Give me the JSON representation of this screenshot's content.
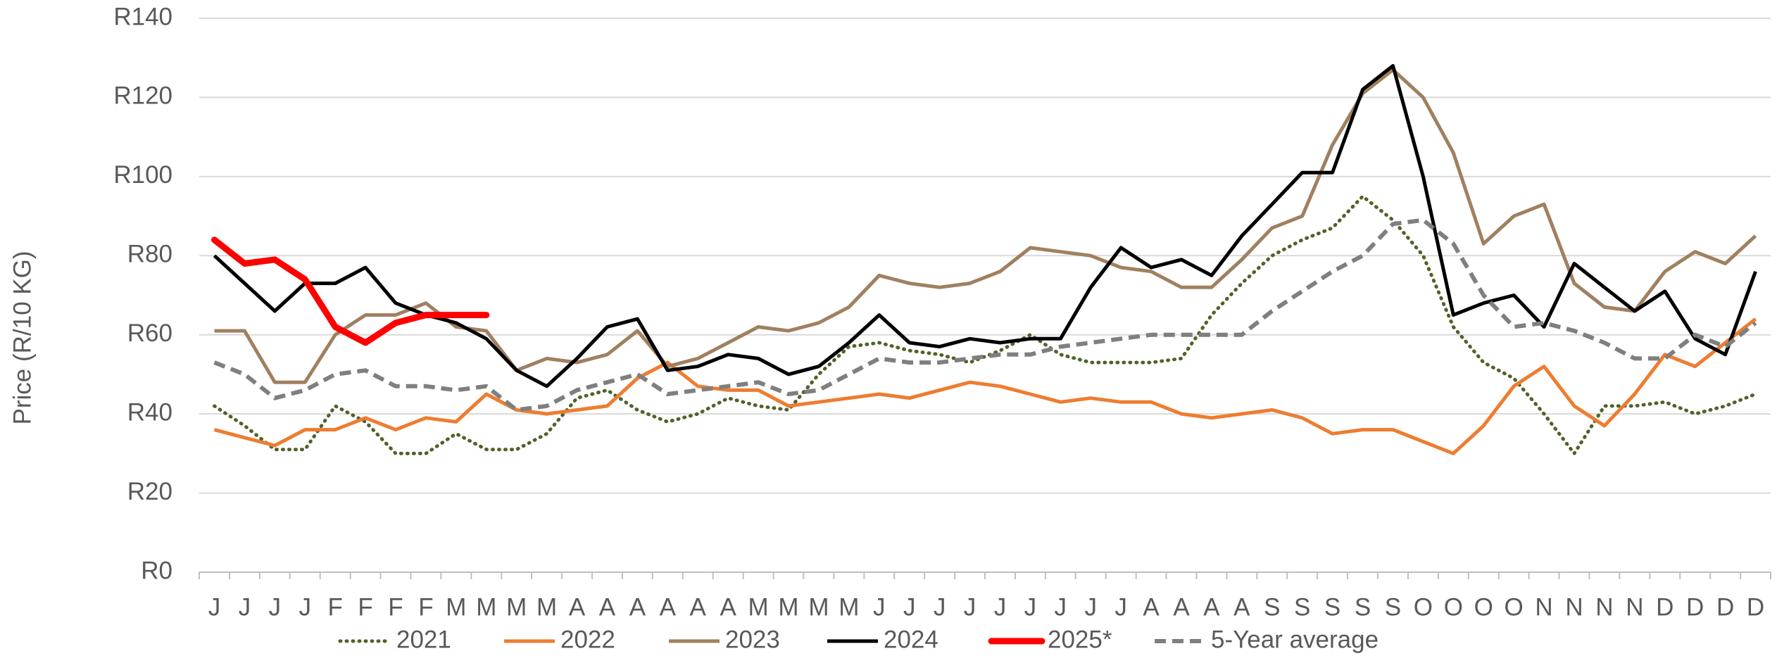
{
  "chart_data": {
    "type": "line",
    "y_label": "Price (R/10 KG)",
    "categories": [
      "J",
      "J",
      "J",
      "J",
      "F",
      "F",
      "F",
      "F",
      "M",
      "M",
      "M",
      "M",
      "A",
      "A",
      "A",
      "A",
      "A",
      "A",
      "M",
      "M",
      "M",
      "M",
      "J",
      "J",
      "J",
      "J",
      "J",
      "J",
      "J",
      "J",
      "J",
      "A",
      "A",
      "A",
      "A",
      "S",
      "S",
      "S",
      "S",
      "S",
      "O",
      "O",
      "O",
      "O",
      "N",
      "N",
      "N",
      "N",
      "D",
      "D",
      "D",
      "D"
    ],
    "ylim": [
      0,
      140
    ],
    "yticks": [
      {
        "value": 0,
        "label": "R0"
      },
      {
        "value": 20,
        "label": "R20"
      },
      {
        "value": 40,
        "label": "R40"
      },
      {
        "value": 60,
        "label": "R60"
      },
      {
        "value": 80,
        "label": "R80"
      },
      {
        "value": 100,
        "label": "R100"
      },
      {
        "value": 120,
        "label": "R120"
      },
      {
        "value": 140,
        "label": "R140"
      }
    ],
    "grid": true,
    "legend": "bottom",
    "series": [
      {
        "name": "2021",
        "color": "#4f6228",
        "style": "dotted",
        "values": [
          42,
          37,
          31,
          31,
          42,
          38,
          30,
          30,
          35,
          31,
          31,
          35,
          44,
          46,
          41,
          38,
          40,
          44,
          42,
          41,
          50,
          57,
          58,
          56,
          55,
          53,
          56,
          60,
          55,
          53,
          53,
          53,
          54,
          65,
          73,
          80,
          84,
          87,
          95,
          89,
          80,
          62,
          53,
          49,
          40,
          30,
          42,
          42,
          43,
          40,
          42,
          45
        ]
      },
      {
        "name": "2022",
        "color": "#ed7d31",
        "style": "solid",
        "values": [
          36,
          34,
          32,
          36,
          36,
          39,
          36,
          39,
          38,
          45,
          41,
          40,
          41,
          42,
          49,
          53,
          47,
          46,
          46,
          42,
          43,
          44,
          45,
          44,
          46,
          48,
          47,
          45,
          43,
          44,
          43,
          43,
          40,
          39,
          40,
          41,
          39,
          35,
          36,
          36,
          33,
          30,
          37,
          47,
          52,
          42,
          37,
          45,
          55,
          52,
          58,
          64
        ]
      },
      {
        "name": "2023",
        "color": "#a08060",
        "style": "solid",
        "values": [
          61,
          61,
          48,
          48,
          60,
          65,
          65,
          68,
          62,
          61,
          51,
          54,
          53,
          55,
          61,
          52,
          54,
          58,
          62,
          61,
          63,
          67,
          75,
          73,
          72,
          73,
          76,
          82,
          81,
          80,
          77,
          76,
          72,
          72,
          79,
          87,
          90,
          108,
          121,
          127,
          120,
          106,
          83,
          90,
          93,
          73,
          67,
          66,
          76,
          81,
          78,
          85
        ]
      },
      {
        "name": "2024",
        "color": "#000000",
        "style": "solid",
        "values": [
          80,
          73,
          66,
          73,
          73,
          77,
          68,
          65,
          63,
          59,
          51,
          47,
          54,
          62,
          64,
          51,
          52,
          55,
          54,
          50,
          52,
          58,
          65,
          58,
          57,
          59,
          58,
          59,
          59,
          72,
          82,
          77,
          79,
          75,
          85,
          93,
          101,
          101,
          122,
          128,
          100,
          65,
          68,
          70,
          62,
          78,
          72,
          66,
          71,
          59,
          55,
          76
        ]
      },
      {
        "name": "2025*",
        "color": "#ff0000",
        "style": "bold",
        "values": [
          84,
          78,
          79,
          74,
          62,
          58,
          63,
          65,
          65,
          65,
          null,
          null,
          null,
          null,
          null,
          null,
          null,
          null,
          null,
          null,
          null,
          null,
          null,
          null,
          null,
          null,
          null,
          null,
          null,
          null,
          null,
          null,
          null,
          null,
          null,
          null,
          null,
          null,
          null,
          null,
          null,
          null,
          null,
          null,
          null,
          null,
          null,
          null,
          null,
          null,
          null,
          null
        ]
      },
      {
        "name": "5-Year average",
        "color": "#7f7f7f",
        "style": "dashed",
        "values": [
          53,
          50,
          44,
          46,
          50,
          51,
          47,
          47,
          46,
          47,
          41,
          42,
          46,
          48,
          50,
          45,
          46,
          47,
          48,
          45,
          46,
          50,
          54,
          53,
          53,
          54,
          55,
          55,
          57,
          58,
          59,
          60,
          60,
          60,
          60,
          66,
          71,
          76,
          80,
          88,
          89,
          83,
          70,
          62,
          63,
          61,
          58,
          54,
          54,
          60,
          57,
          63
        ]
      }
    ]
  }
}
